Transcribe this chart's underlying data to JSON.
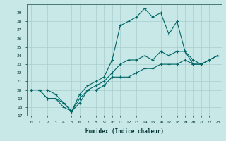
{
  "xlabel": "Humidex (Indice chaleur)",
  "background_color": "#c8e8e8",
  "grid_color": "#a8cccc",
  "line_color": "#006666",
  "ylim": [
    17,
    30
  ],
  "xlim": [
    -0.5,
    23.5
  ],
  "yticks": [
    17,
    18,
    19,
    20,
    21,
    22,
    23,
    24,
    25,
    26,
    27,
    28,
    29
  ],
  "xticks": [
    0,
    1,
    2,
    3,
    4,
    5,
    6,
    7,
    8,
    9,
    10,
    11,
    12,
    13,
    14,
    15,
    16,
    17,
    18,
    19,
    20,
    21,
    22,
    23
  ],
  "line_max_x": [
    0,
    1,
    2,
    3,
    4,
    5,
    6,
    7,
    8,
    9,
    10,
    11,
    12,
    13,
    14,
    15,
    16,
    17,
    18,
    19,
    20,
    21,
    22,
    23
  ],
  "line_max_y": [
    20.0,
    20.0,
    20.0,
    19.5,
    18.5,
    17.5,
    19.5,
    20.5,
    21.0,
    21.5,
    23.5,
    27.5,
    28.0,
    28.5,
    29.5,
    28.5,
    29.0,
    26.5,
    28.0,
    24.5,
    23.5,
    23.0,
    23.5,
    24.0
  ],
  "line_mid_x": [
    0,
    1,
    2,
    3,
    4,
    5,
    6,
    7,
    8,
    9,
    10,
    11,
    12,
    13,
    14,
    15,
    16,
    17,
    18,
    19,
    20,
    21,
    22,
    23
  ],
  "line_mid_y": [
    20.0,
    20.0,
    19.0,
    19.0,
    18.5,
    17.5,
    19.0,
    20.0,
    20.5,
    21.0,
    22.0,
    23.0,
    23.5,
    23.5,
    24.0,
    23.5,
    24.5,
    24.0,
    24.5,
    24.5,
    23.0,
    23.0,
    23.5,
    24.0
  ],
  "line_min_x": [
    0,
    1,
    2,
    3,
    4,
    5,
    6,
    7,
    8,
    9,
    10,
    11,
    12,
    13,
    14,
    15,
    16,
    17,
    18,
    19,
    20,
    21,
    22,
    23
  ],
  "line_min_y": [
    20.0,
    20.0,
    19.0,
    19.0,
    18.0,
    17.5,
    18.5,
    20.0,
    20.0,
    20.5,
    21.5,
    21.5,
    21.5,
    22.0,
    22.5,
    22.5,
    23.0,
    23.0,
    23.0,
    23.5,
    23.0,
    23.0,
    23.5,
    24.0
  ]
}
